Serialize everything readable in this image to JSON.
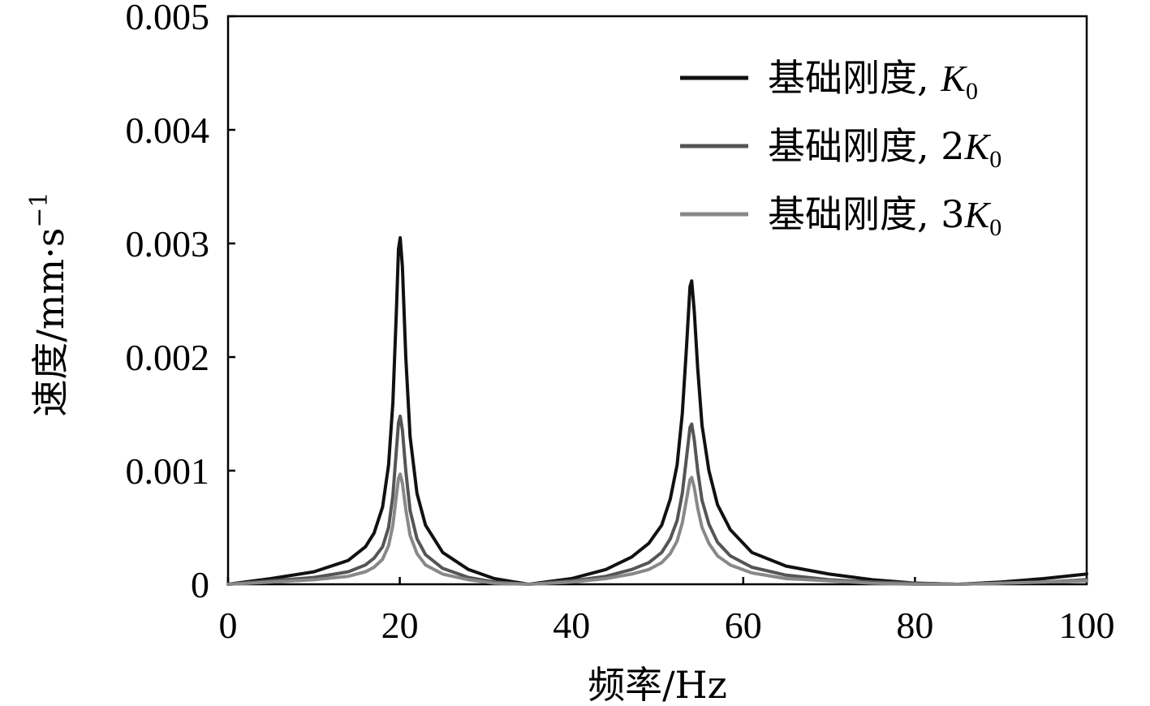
{
  "chart_data": {
    "type": "line",
    "xlabel": "频率/Hz",
    "ylabel": "速度/mm·s",
    "ylabel_exponent": "−1",
    "xlim": [
      0,
      100
    ],
    "ylim": [
      0,
      0.005
    ],
    "x_ticks": [
      "0",
      "20",
      "40",
      "60",
      "80",
      "100"
    ],
    "y_ticks": [
      "0",
      "0.001",
      "0.002",
      "0.003",
      "0.004",
      "0.005"
    ],
    "grid": false,
    "legend_position": "top-right",
    "series": [
      {
        "name": "基础刚度, K0",
        "label_prefix": "基础刚度, ",
        "label_coef": "",
        "label_var": "K",
        "label_sub": "0",
        "color": "#111111",
        "points": [
          [
            0,
            0.0
          ],
          [
            5,
            5e-05
          ],
          [
            10,
            0.00011
          ],
          [
            14,
            0.00021
          ],
          [
            16,
            0.00033
          ],
          [
            17,
            0.00045
          ],
          [
            18,
            0.00068
          ],
          [
            18.7,
            0.00105
          ],
          [
            19.2,
            0.0016
          ],
          [
            19.6,
            0.0024
          ],
          [
            19.85,
            0.00295
          ],
          [
            20.05,
            0.00305
          ],
          [
            20.3,
            0.0028
          ],
          [
            20.7,
            0.002
          ],
          [
            21.2,
            0.0013
          ],
          [
            22,
            0.0008
          ],
          [
            23,
            0.00052
          ],
          [
            25,
            0.00028
          ],
          [
            28,
            0.00013
          ],
          [
            31,
            5e-05
          ],
          [
            35,
            0.0
          ],
          [
            40,
            5e-05
          ],
          [
            44,
            0.00013
          ],
          [
            47,
            0.00024
          ],
          [
            49,
            0.00036
          ],
          [
            50.5,
            0.00052
          ],
          [
            51.5,
            0.00075
          ],
          [
            52.3,
            0.00105
          ],
          [
            52.9,
            0.0015
          ],
          [
            53.4,
            0.0021
          ],
          [
            53.8,
            0.00262
          ],
          [
            54.0,
            0.00267
          ],
          [
            54.3,
            0.0024
          ],
          [
            54.7,
            0.0019
          ],
          [
            55.2,
            0.0014
          ],
          [
            56,
            0.001
          ],
          [
            57,
            0.0007
          ],
          [
            58.5,
            0.00048
          ],
          [
            61,
            0.00028
          ],
          [
            65,
            0.00016
          ],
          [
            70,
            9e-05
          ],
          [
            75,
            4e-05
          ],
          [
            80,
            1e-05
          ],
          [
            85,
            0.0
          ],
          [
            90,
            2e-05
          ],
          [
            95,
            5e-05
          ],
          [
            100,
            9e-05
          ]
        ]
      },
      {
        "name": "基础刚度, 2K0",
        "label_prefix": "基础刚度, ",
        "label_coef": "2",
        "label_var": "K",
        "label_sub": "0",
        "color": "#555555",
        "points": [
          [
            0,
            0.0
          ],
          [
            5,
            3e-05
          ],
          [
            10,
            6e-05
          ],
          [
            14,
            0.00011
          ],
          [
            16,
            0.00017
          ],
          [
            17,
            0.00023
          ],
          [
            18,
            0.00033
          ],
          [
            18.7,
            0.0005
          ],
          [
            19.2,
            0.00078
          ],
          [
            19.6,
            0.00118
          ],
          [
            19.85,
            0.00142
          ],
          [
            20.05,
            0.00148
          ],
          [
            20.3,
            0.00136
          ],
          [
            20.7,
            0.001
          ],
          [
            21.2,
            0.00065
          ],
          [
            22,
            0.0004
          ],
          [
            23,
            0.00026
          ],
          [
            25,
            0.00014
          ],
          [
            28,
            6e-05
          ],
          [
            31,
            2e-05
          ],
          [
            35,
            0.0
          ],
          [
            40,
            3e-05
          ],
          [
            44,
            7e-05
          ],
          [
            47,
            0.00013
          ],
          [
            49,
            0.00019
          ],
          [
            50.5,
            0.00028
          ],
          [
            51.5,
            0.0004
          ],
          [
            52.3,
            0.00056
          ],
          [
            52.9,
            0.0008
          ],
          [
            53.4,
            0.00112
          ],
          [
            53.8,
            0.00138
          ],
          [
            54.0,
            0.00141
          ],
          [
            54.3,
            0.00127
          ],
          [
            54.7,
            0.001
          ],
          [
            55.2,
            0.00074
          ],
          [
            56,
            0.00053
          ],
          [
            57,
            0.00037
          ],
          [
            58.5,
            0.00025
          ],
          [
            61,
            0.00015
          ],
          [
            65,
            8e-05
          ],
          [
            70,
            4e-05
          ],
          [
            75,
            2e-05
          ],
          [
            80,
            1e-05
          ],
          [
            85,
            0.0
          ],
          [
            90,
            1e-05
          ],
          [
            95,
            2e-05
          ],
          [
            100,
            4e-05
          ]
        ]
      },
      {
        "name": "基础刚度, 3K0",
        "label_prefix": "基础刚度, ",
        "label_coef": "3",
        "label_var": "K",
        "label_sub": "0",
        "color": "#888888",
        "points": [
          [
            0,
            0.0
          ],
          [
            5,
            2e-05
          ],
          [
            10,
            4e-05
          ],
          [
            14,
            7e-05
          ],
          [
            16,
            0.00011
          ],
          [
            17,
            0.00015
          ],
          [
            18,
            0.00022
          ],
          [
            18.7,
            0.00034
          ],
          [
            19.2,
            0.00052
          ],
          [
            19.6,
            0.00078
          ],
          [
            19.85,
            0.00093
          ],
          [
            20.05,
            0.00097
          ],
          [
            20.3,
            0.00089
          ],
          [
            20.7,
            0.00066
          ],
          [
            21.2,
            0.00043
          ],
          [
            22,
            0.00027
          ],
          [
            23,
            0.00017
          ],
          [
            25,
            9e-05
          ],
          [
            28,
            4e-05
          ],
          [
            31,
            1e-05
          ],
          [
            35,
            0.0
          ],
          [
            40,
            2e-05
          ],
          [
            44,
            5e-05
          ],
          [
            47,
            9e-05
          ],
          [
            49,
            0.00013
          ],
          [
            50.5,
            0.00019
          ],
          [
            51.5,
            0.00027
          ],
          [
            52.3,
            0.00038
          ],
          [
            52.9,
            0.00054
          ],
          [
            53.4,
            0.00075
          ],
          [
            53.8,
            0.00092
          ],
          [
            54.0,
            0.00094
          ],
          [
            54.3,
            0.00085
          ],
          [
            54.7,
            0.00067
          ],
          [
            55.2,
            0.0005
          ],
          [
            56,
            0.00036
          ],
          [
            57,
            0.00025
          ],
          [
            58.5,
            0.00017
          ],
          [
            61,
            0.0001
          ],
          [
            65,
            5e-05
          ],
          [
            70,
            3e-05
          ],
          [
            75,
            1e-05
          ],
          [
            80,
            0.0
          ],
          [
            85,
            0.0
          ],
          [
            90,
            1e-05
          ],
          [
            95,
            2e-05
          ],
          [
            100,
            3e-05
          ]
        ]
      }
    ]
  }
}
